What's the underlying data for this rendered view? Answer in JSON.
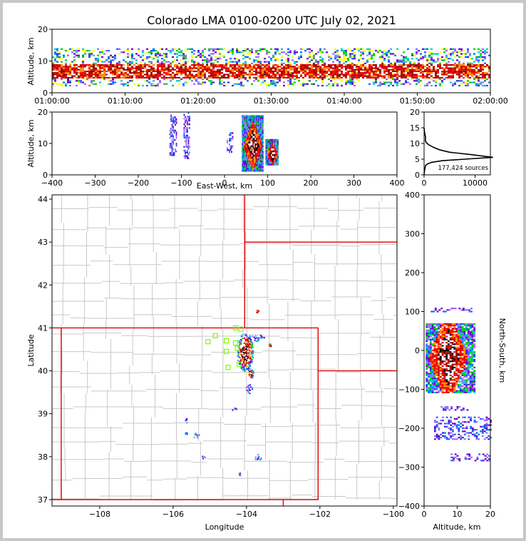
{
  "title": "Colorado LMA 0100-0200 UTC July 02, 2021",
  "colors": {
    "state_borders": "#e00000",
    "county_lines": "#c8c8c8",
    "stations": "#7cfc00",
    "density_scale": [
      "#6600cc",
      "#9966ff",
      "#0066ff",
      "#00cccc",
      "#00cc00",
      "#ffff00",
      "#ff8800",
      "#ff0000",
      "#cc0000",
      "#990000",
      "#ffffff",
      "#000000"
    ]
  },
  "chart_data": [
    {
      "panel": "altitude-time",
      "type": "heatmap",
      "ylabel": "Altitude, km",
      "xlabel": "",
      "ylim": [
        0,
        20
      ],
      "yticks": [
        0,
        10,
        20
      ],
      "xticks": [
        "01:00:00",
        "01:10:00",
        "01:20:00",
        "01:30:00",
        "01:40:00",
        "01:50:00",
        "02:00:00"
      ],
      "xlim_min": [
        60,
        120
      ],
      "band": {
        "core_altitude_km": [
          4.5,
          8.5
        ],
        "extent_altitude_km": [
          2,
          14
        ]
      }
    },
    {
      "panel": "altitude-east-west",
      "type": "heatmap",
      "xlabel": "East-West, km",
      "ylabel": "Altitude, km",
      "xlim": [
        -400,
        400
      ],
      "ylim": [
        0,
        20
      ],
      "xticks": [
        -400,
        -300,
        -200,
        -100,
        0,
        100,
        200,
        300,
        400
      ],
      "yticks": [
        0,
        10,
        20
      ],
      "clusters": [
        {
          "x": [
            -128,
            -112
          ],
          "alt": [
            6,
            19
          ],
          "dense": false
        },
        {
          "x": [
            -95,
            -80
          ],
          "alt": [
            5,
            20
          ],
          "dense": false
        },
        {
          "x": [
            5,
            18
          ],
          "alt": [
            7,
            13
          ],
          "dense": false
        },
        {
          "x": [
            40,
            90
          ],
          "alt": [
            1,
            19
          ],
          "dense": true
        },
        {
          "x": [
            95,
            125
          ],
          "alt": [
            3,
            11
          ],
          "dense": true
        }
      ]
    },
    {
      "panel": "altitude-histogram",
      "type": "line",
      "xlim": [
        0,
        13000
      ],
      "ylim": [
        0,
        20
      ],
      "xticks": [
        0,
        10000
      ],
      "yticks": [
        0,
        5,
        10,
        15,
        20
      ],
      "annotation": "177,424 sources",
      "x": [
        0,
        60,
        150,
        300,
        700,
        1500,
        3500,
        8000,
        13500,
        9000,
        5000,
        3000,
        1800,
        1000,
        600,
        350,
        250,
        300,
        150,
        60,
        0
      ],
      "y": [
        0,
        1,
        2,
        3,
        3.5,
        4,
        4.5,
        5,
        5.6,
        6.5,
        7.2,
        8,
        8.8,
        9.5,
        10,
        10.5,
        11,
        12,
        13,
        14,
        15
      ]
    },
    {
      "panel": "plan-view",
      "type": "map",
      "xlabel": "Longitude",
      "ylabel": "Latitude",
      "xlim": [
        -109.3,
        -99.9
      ],
      "ylim": [
        36.85,
        44.1
      ],
      "xticks": [
        -108,
        -106,
        -104,
        -102,
        -100
      ],
      "xtick_labels": [
        "−108",
        "−106",
        "−104",
        "−102",
        "−100"
      ],
      "yticks": [
        37,
        38,
        39,
        40,
        41,
        42,
        43,
        44
      ],
      "stations": [
        [
          -104.85,
          40.82
        ],
        [
          -105.05,
          40.68
        ],
        [
          -104.55,
          40.7
        ],
        [
          -104.3,
          40.65
        ],
        [
          -104.25,
          40.53
        ],
        [
          -104.55,
          40.45
        ],
        [
          -104.5,
          40.08
        ],
        [
          -104.15,
          40.97
        ],
        [
          -104.3,
          41.0
        ],
        [
          -104.2,
          40.15
        ]
      ],
      "clusters": [
        {
          "lon": -104.05,
          "lat": 40.45,
          "rx": 0.22,
          "ry": 0.45,
          "dense": true
        },
        {
          "lon": -103.75,
          "lat": 40.78,
          "rx": 0.22,
          "ry": 0.08,
          "dense": false
        },
        {
          "lon": -103.35,
          "lat": 40.6,
          "rx": 0.06,
          "ry": 0.05,
          "dense": true
        },
        {
          "lon": -103.9,
          "lat": 39.95,
          "rx": 0.08,
          "ry": 0.12,
          "dense": true
        },
        {
          "lon": -103.95,
          "lat": 39.6,
          "rx": 0.1,
          "ry": 0.12,
          "dense": false
        },
        {
          "lon": -103.72,
          "lat": 41.4,
          "rx": 0.05,
          "ry": 0.04,
          "dense": true
        },
        {
          "lon": -104.35,
          "lat": 39.12,
          "rx": 0.06,
          "ry": 0.04,
          "dense": false
        },
        {
          "lon": -105.65,
          "lat": 38.85,
          "rx": 0.07,
          "ry": 0.05,
          "dense": false
        },
        {
          "lon": -105.4,
          "lat": 38.5,
          "rx": 0.1,
          "ry": 0.06,
          "dense": false
        },
        {
          "lon": -105.65,
          "lat": 38.55,
          "rx": 0.04,
          "ry": 0.03,
          "dense": false
        },
        {
          "lon": -103.7,
          "lat": 38.0,
          "rx": 0.1,
          "ry": 0.08,
          "dense": false
        },
        {
          "lon": -105.2,
          "lat": 38.0,
          "rx": 0.06,
          "ry": 0.03,
          "dense": false
        },
        {
          "lon": -104.2,
          "lat": 37.6,
          "rx": 0.04,
          "ry": 0.03,
          "dense": false
        }
      ]
    },
    {
      "panel": "north-south-altitude",
      "type": "heatmap",
      "xlabel": "Altitude, km",
      "ylabel": "North-South, km",
      "xlim": [
        0,
        20
      ],
      "ylim": [
        -400,
        400
      ],
      "xticks": [
        0,
        10,
        20
      ],
      "yticks": [
        -400,
        -300,
        -200,
        -100,
        0,
        100,
        200,
        300,
        400
      ],
      "ytick_labels": [
        "−400",
        "−300",
        "−200",
        "−100",
        "0",
        "100",
        "200",
        "300",
        "400"
      ],
      "clusters": [
        {
          "ns": [
            -110,
            70
          ],
          "alt": [
            0.5,
            15
          ],
          "dense": true
        },
        {
          "ns": [
            98,
            110
          ],
          "alt": [
            2,
            14
          ],
          "dense": false
        },
        {
          "ns": [
            -155,
            -145
          ],
          "alt": [
            5,
            13
          ],
          "dense": false
        },
        {
          "ns": [
            -230,
            -170
          ],
          "alt": [
            3,
            20
          ],
          "dense": false
        },
        {
          "ns": [
            -285,
            -265
          ],
          "alt": [
            8,
            20
          ],
          "dense": false
        }
      ]
    }
  ]
}
